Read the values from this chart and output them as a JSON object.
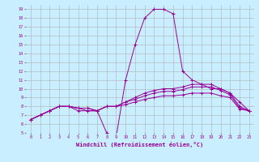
{
  "x": [
    0,
    1,
    2,
    3,
    4,
    5,
    6,
    7,
    8,
    9,
    10,
    11,
    12,
    13,
    14,
    15,
    16,
    17,
    18,
    19,
    20,
    21,
    22,
    23
  ],
  "series": [
    [
      6.5,
      7.0,
      7.5,
      8.0,
      8.0,
      7.5,
      7.5,
      7.5,
      5.0,
      4.5,
      11.0,
      15.0,
      18.0,
      19.0,
      19.0,
      18.5,
      12.0,
      11.0,
      10.5,
      10.0,
      10.0,
      9.5,
      8.5,
      7.5
    ],
    [
      6.5,
      7.0,
      7.5,
      8.0,
      8.0,
      7.8,
      7.8,
      7.5,
      8.0,
      8.0,
      8.5,
      9.0,
      9.5,
      9.8,
      10.0,
      10.0,
      10.2,
      10.5,
      10.5,
      10.5,
      10.0,
      9.5,
      8.0,
      7.5
    ],
    [
      6.5,
      7.0,
      7.5,
      8.0,
      8.0,
      7.8,
      7.8,
      7.5,
      8.0,
      8.0,
      8.5,
      8.8,
      9.2,
      9.5,
      9.7,
      9.7,
      9.9,
      10.2,
      10.2,
      10.2,
      9.8,
      9.3,
      7.8,
      7.5
    ],
    [
      6.5,
      7.0,
      7.5,
      8.0,
      8.0,
      7.8,
      7.5,
      7.5,
      8.0,
      8.0,
      8.2,
      8.5,
      8.8,
      9.0,
      9.2,
      9.2,
      9.3,
      9.5,
      9.5,
      9.5,
      9.2,
      9.0,
      7.7,
      7.5
    ]
  ],
  "color": "#990099",
  "bg_color": "#c8eeff",
  "grid_color": "#b0b0b0",
  "xlabel": "Windchill (Refroidissement éolien,°C)",
  "xlim": [
    -0.5,
    23.5
  ],
  "ylim": [
    5,
    19.5
  ],
  "xticks": [
    0,
    1,
    2,
    3,
    4,
    5,
    6,
    7,
    8,
    9,
    10,
    11,
    12,
    13,
    14,
    15,
    16,
    17,
    18,
    19,
    20,
    21,
    22,
    23
  ],
  "yticks": [
    5,
    6,
    7,
    8,
    9,
    10,
    11,
    12,
    13,
    14,
    15,
    16,
    17,
    18,
    19
  ]
}
